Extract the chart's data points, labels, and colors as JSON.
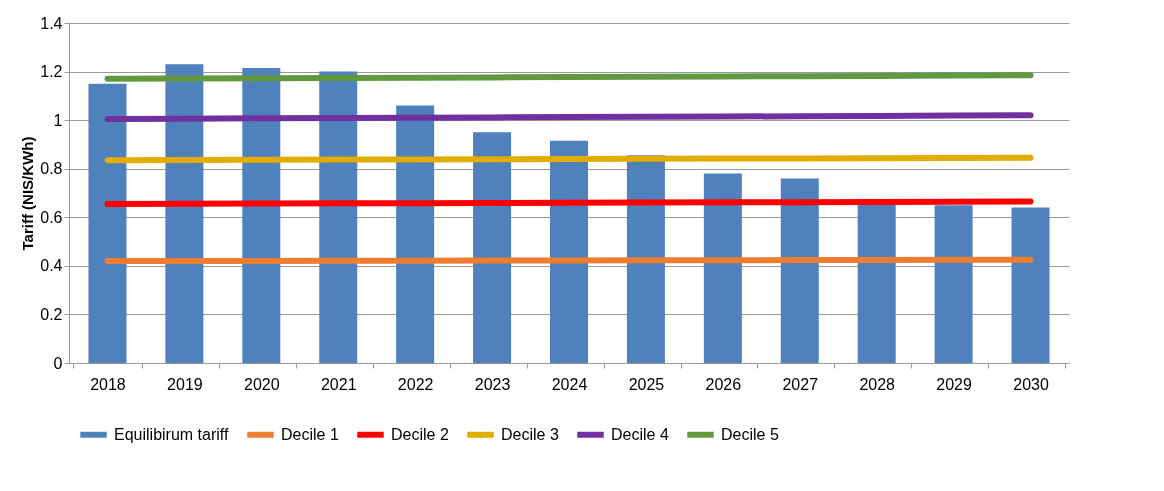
{
  "chart_data": {
    "type": "bar",
    "ylabel": "Tariff (NIS/KWh)",
    "categories": [
      "2018",
      "2019",
      "2020",
      "2021",
      "2022",
      "2023",
      "2024",
      "2025",
      "2026",
      "2027",
      "2028",
      "2029",
      "2030"
    ],
    "series": [
      {
        "name": "Equilibirum tariff",
        "color": "#4f81bd",
        "values": [
          1.15,
          1.23,
          1.215,
          1.2,
          1.06,
          0.95,
          0.915,
          0.855,
          0.78,
          0.76,
          0.66,
          0.65,
          0.64
        ]
      },
      {
        "name": "Decile 1",
        "type": "line",
        "color": "#ed7d31",
        "values": [
          0.42,
          0.42,
          0.42,
          0.421,
          0.421,
          0.422,
          0.422,
          0.423,
          0.423,
          0.424,
          0.424,
          0.425,
          0.425
        ]
      },
      {
        "name": "Decile 2",
        "type": "line",
        "color": "#ff0000",
        "values": [
          0.655,
          0.656,
          0.657,
          0.658,
          0.658,
          0.659,
          0.66,
          0.661,
          0.662,
          0.662,
          0.663,
          0.664,
          0.665
        ]
      },
      {
        "name": "Decile 3",
        "type": "line",
        "color": "#e3ac00",
        "values": [
          0.835,
          0.836,
          0.837,
          0.838,
          0.838,
          0.839,
          0.84,
          0.841,
          0.842,
          0.842,
          0.843,
          0.844,
          0.845
        ]
      },
      {
        "name": "Decile 4",
        "type": "line",
        "color": "#7030a0",
        "values": [
          1.005,
          1.006,
          1.008,
          1.009,
          1.01,
          1.011,
          1.013,
          1.014,
          1.015,
          1.016,
          1.017,
          1.019,
          1.02
        ]
      },
      {
        "name": "Decile 5",
        "type": "line",
        "color": "#62993e",
        "values": [
          1.17,
          1.171,
          1.173,
          1.174,
          1.175,
          1.176,
          1.178,
          1.179,
          1.18,
          1.181,
          1.182,
          1.184,
          1.185
        ]
      }
    ],
    "ylim": [
      0,
      1.4
    ],
    "yticks": [
      0,
      0.2,
      0.4,
      0.6,
      0.8,
      1,
      1.2,
      1.4
    ],
    "grid": "y",
    "legend": "bottom"
  }
}
